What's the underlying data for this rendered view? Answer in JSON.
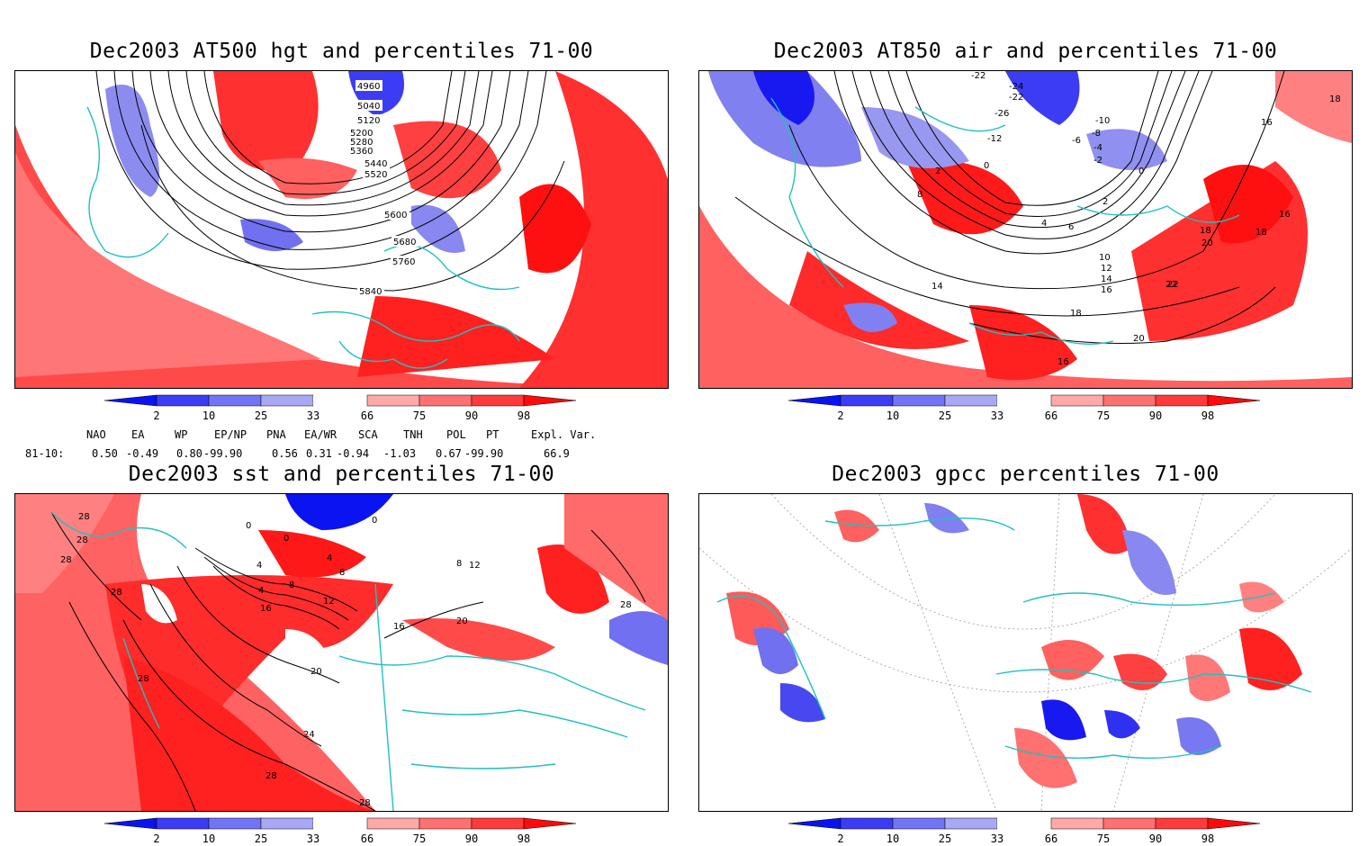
{
  "panels": [
    {
      "title": "Dec2003 AT500 hgt and percentiles 71-00",
      "variable": "500 hPa geopotential height (contours) with percentile shading",
      "contour_labels": [
        "4960",
        "5040",
        "5120",
        "5200",
        "5280",
        "5360",
        "5440",
        "5520",
        "5600",
        "5680",
        "5760",
        "5840"
      ]
    },
    {
      "title": "Dec2003 AT850 air and percentiles 71-00",
      "variable": "850 hPa air temperature (contours) with percentile shading",
      "contour_labels": [
        "-22",
        "-24",
        "-22",
        "-26",
        "-12",
        "-10",
        "-8",
        "-6",
        "-4",
        "-2",
        "0",
        "2",
        "0",
        "2",
        "4",
        "6",
        "8",
        "10",
        "12",
        "14",
        "16",
        "18",
        "20",
        "22",
        "14",
        "16",
        "18",
        "16",
        "18",
        "20",
        "22",
        "16",
        "18"
      ]
    },
    {
      "title": "Dec2003 sst and percentiles 71-00",
      "variable": "sea surface temperature (contours) with percentile shading",
      "contour_labels": [
        "28",
        "28",
        "28",
        "28",
        "0",
        "0",
        "0",
        "4",
        "4",
        "8",
        "4",
        "8",
        "12",
        "16",
        "16",
        "20",
        "20",
        "24",
        "28",
        "28",
        "28",
        "12",
        "8",
        "28"
      ]
    },
    {
      "title": "Dec2003 gpcc percentiles 71-00",
      "variable": "GPCC precipitation percentiles",
      "contour_labels": []
    }
  ],
  "colorbar": {
    "labels": [
      "2",
      "10",
      "25",
      "33",
      "66",
      "75",
      "90",
      "98"
    ],
    "colors": [
      "#0a14f0",
      "#3c3cf5",
      "#7373f5",
      "#a8a8f5",
      "#ffffff",
      "#ffa8a8",
      "#ff7070",
      "#ff3a3a",
      "#ff0a0a"
    ]
  },
  "teleconnections": {
    "row_label": "81-10:",
    "indices": [
      {
        "name": "NAO",
        "value": "0.50"
      },
      {
        "name": "EA",
        "value": "-0.49"
      },
      {
        "name": "WP",
        "value": "0.80"
      },
      {
        "name": "EP/NP",
        "value": "-99.90"
      },
      {
        "name": "PNA",
        "value": "0.56"
      },
      {
        "name": "EA/WR",
        "value": "0.31"
      },
      {
        "name": "SCA",
        "value": "-0.94"
      },
      {
        "name": "TNH",
        "value": "-1.03"
      },
      {
        "name": "POL",
        "value": "0.67"
      },
      {
        "name": "PT",
        "value": "-99.90"
      },
      {
        "name": "Expl. Var.",
        "value": "66.9"
      }
    ]
  },
  "colors": {
    "coast": "#20c0c0",
    "contour": "#000000",
    "warm": "#ff3a3a",
    "cold": "#3c3cf5"
  }
}
